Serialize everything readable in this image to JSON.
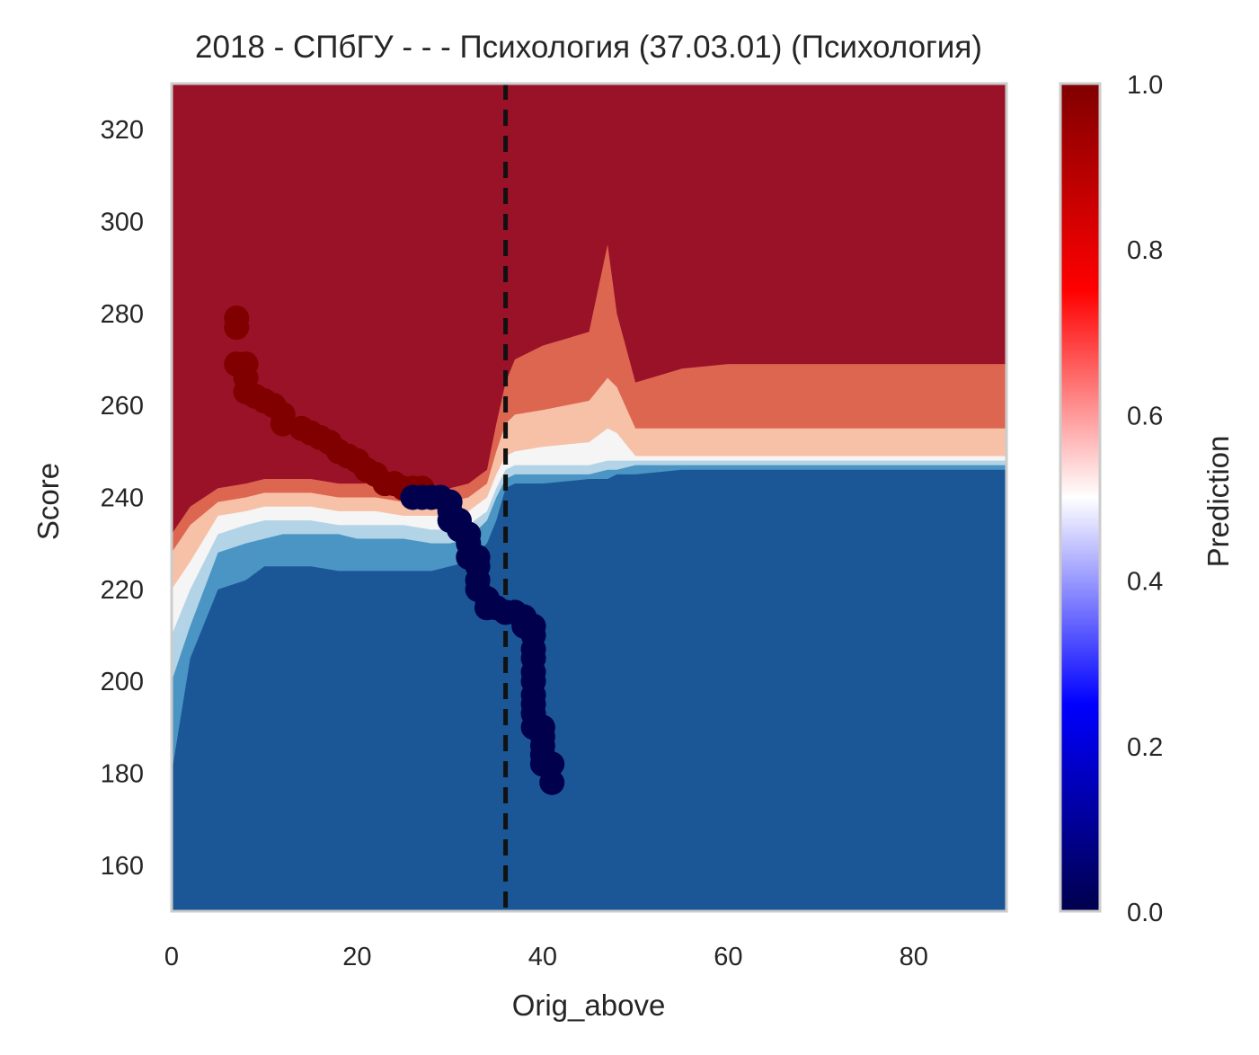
{
  "chart_data": {
    "type": "contour",
    "title": "2018 - СПбГУ - - - Психология (37.03.01) (Психология)",
    "xlabel": "Orig_above",
    "ylabel": "Score",
    "xlim": [
      0,
      90
    ],
    "ylim": [
      150,
      330
    ],
    "xticks": [
      "0",
      "20",
      "40",
      "60",
      "80"
    ],
    "yticks": [
      "160",
      "180",
      "200",
      "220",
      "240",
      "260",
      "280",
      "300",
      "320"
    ],
    "vline_x": 36,
    "colorbar": {
      "label": "Prediction",
      "range": [
        0.0,
        1.0
      ],
      "ticks": [
        "0.0",
        "0.2",
        "0.4",
        "0.6",
        "0.8",
        "1.0"
      ],
      "colormap": "seismic"
    },
    "level_colors": [
      "#1b5797",
      "#4a95c4",
      "#b3d4e6",
      "#f5f5f5",
      "#f7c1a8",
      "#dd6651",
      "#9a1228"
    ],
    "boundary_x": [
      0,
      2,
      5,
      8,
      10,
      12,
      15,
      18,
      20,
      22,
      25,
      28,
      30,
      32,
      34,
      35,
      36,
      37,
      40,
      45,
      47,
      48,
      50,
      55,
      60,
      70,
      80,
      90
    ],
    "boundaries": [
      [
        180,
        205,
        220,
        222,
        225,
        225,
        225,
        224,
        224,
        224,
        224,
        224,
        225,
        226,
        230,
        235,
        242,
        243,
        243,
        244,
        244,
        245,
        245,
        246,
        246,
        246,
        246,
        246
      ],
      [
        200,
        212,
        228,
        230,
        231,
        232,
        232,
        232,
        231,
        231,
        231,
        230,
        230,
        231,
        235,
        240,
        244,
        245,
        245,
        245,
        246,
        246,
        247,
        247,
        247,
        247,
        247,
        247
      ],
      [
        210,
        220,
        232,
        234,
        235,
        235,
        235,
        234,
        234,
        234,
        234,
        233,
        233,
        234,
        237,
        242,
        246,
        247,
        247,
        247,
        248,
        248,
        248,
        248,
        248,
        248,
        248,
        248
      ],
      [
        220,
        226,
        236,
        237,
        238,
        238,
        238,
        237,
        237,
        237,
        236,
        236,
        236,
        237,
        240,
        245,
        249,
        250,
        251,
        252,
        255,
        254,
        249,
        249,
        249,
        249,
        249,
        249
      ],
      [
        228,
        234,
        239,
        240,
        241,
        241,
        241,
        240,
        240,
        240,
        239,
        239,
        239,
        240,
        243,
        250,
        256,
        258,
        259,
        261,
        266,
        264,
        255,
        255,
        255,
        255,
        255,
        255
      ],
      [
        232,
        238,
        242,
        243,
        244,
        244,
        244,
        243,
        243,
        243,
        242,
        242,
        242,
        243,
        246,
        256,
        265,
        270,
        273,
        276,
        295,
        280,
        265,
        268,
        269,
        269,
        269,
        269
      ]
    ],
    "series": [
      {
        "label": "1",
        "color": "#800000",
        "points": [
          [
            7,
            279
          ],
          [
            7,
            277
          ],
          [
            7,
            269
          ],
          [
            8,
            269
          ],
          [
            8,
            266
          ],
          [
            8,
            263
          ],
          [
            9,
            262
          ],
          [
            10,
            261
          ],
          [
            11,
            260
          ],
          [
            12,
            258
          ],
          [
            12,
            256
          ],
          [
            14,
            255
          ],
          [
            15,
            254
          ],
          [
            16,
            253
          ],
          [
            17,
            252
          ],
          [
            18,
            250
          ],
          [
            19,
            249
          ],
          [
            20,
            248
          ],
          [
            21,
            246
          ],
          [
            22,
            245
          ],
          [
            23,
            243
          ],
          [
            24,
            243
          ],
          [
            25,
            242
          ],
          [
            26,
            242
          ],
          [
            27,
            242
          ]
        ]
      },
      {
        "label": "0",
        "color": "#00004c",
        "points": [
          [
            26,
            240
          ],
          [
            27,
            240
          ],
          [
            28,
            240
          ],
          [
            29,
            240
          ],
          [
            30,
            239
          ],
          [
            30,
            237
          ],
          [
            30,
            235
          ],
          [
            31,
            235
          ],
          [
            31,
            233
          ],
          [
            32,
            232
          ],
          [
            32,
            230
          ],
          [
            32,
            227
          ],
          [
            33,
            227
          ],
          [
            33,
            225
          ],
          [
            33,
            222
          ],
          [
            33,
            220
          ],
          [
            34,
            218
          ],
          [
            34,
            216
          ],
          [
            35,
            216
          ],
          [
            36,
            215
          ],
          [
            37,
            215
          ],
          [
            38,
            214
          ],
          [
            38,
            212
          ],
          [
            39,
            212
          ],
          [
            39,
            210
          ],
          [
            39,
            207
          ],
          [
            39,
            205
          ],
          [
            39,
            202
          ],
          [
            39,
            200
          ],
          [
            39,
            197
          ],
          [
            39,
            195
          ],
          [
            39,
            193
          ],
          [
            39,
            190
          ],
          [
            40,
            190
          ],
          [
            40,
            188
          ],
          [
            40,
            186
          ],
          [
            40,
            184
          ],
          [
            40,
            182
          ],
          [
            41,
            182
          ],
          [
            41,
            178
          ]
        ]
      }
    ]
  }
}
